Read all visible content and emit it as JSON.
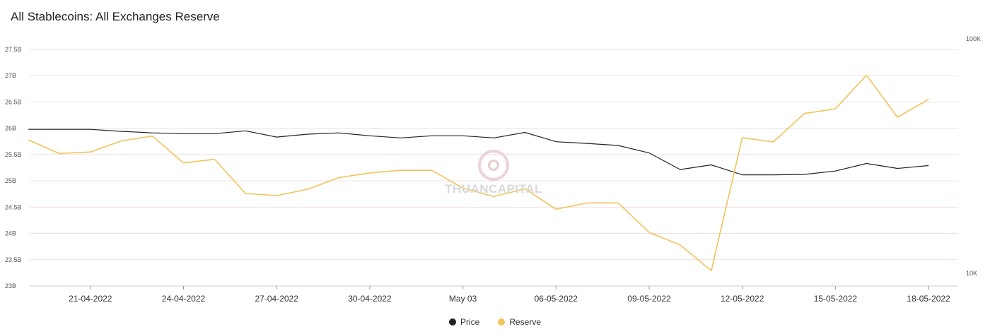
{
  "header": {
    "title": "All Stablecoins: All Exchanges Reserve"
  },
  "watermark": {
    "text": "THUANCAPITAL"
  },
  "legend": {
    "items": [
      {
        "label": "Price",
        "color": "#222222"
      },
      {
        "label": "Reserve",
        "color": "#f0c45a"
      }
    ]
  },
  "chart_data": {
    "type": "line",
    "title": "All Stablecoins: All Exchanges Reserve",
    "xlabel": "",
    "ylabel": "",
    "x_ticks": [
      "21-04-2022",
      "24-04-2022",
      "27-04-2022",
      "30-04-2022",
      "May 03",
      "06-05-2022",
      "09-05-2022",
      "12-05-2022",
      "15-05-2022",
      "18-05-2022"
    ],
    "y_ticks": [
      "27.5B",
      "27B",
      "26.5B",
      "26B",
      "25.5B",
      "25B",
      "24.5B",
      "24B",
      "23.5B",
      "23B"
    ],
    "right_y_ticks": [
      "100K",
      "10K"
    ],
    "ylim": [
      23000000000,
      27500000000
    ],
    "right_ylim": [
      10000,
      100000
    ],
    "right_scale": "log",
    "x": [
      "19-04-2022",
      "20-04-2022",
      "21-04-2022",
      "22-04-2022",
      "23-04-2022",
      "24-04-2022",
      "25-04-2022",
      "26-04-2022",
      "27-04-2022",
      "28-04-2022",
      "29-04-2022",
      "30-04-2022",
      "01-05-2022",
      "02-05-2022",
      "03-05-2022",
      "04-05-2022",
      "05-05-2022",
      "06-05-2022",
      "07-05-2022",
      "08-05-2022",
      "09-05-2022",
      "10-05-2022",
      "11-05-2022",
      "12-05-2022",
      "13-05-2022",
      "14-05-2022",
      "15-05-2022",
      "16-05-2022",
      "17-05-2022",
      "18-05-2022"
    ],
    "series": [
      {
        "name": "Price",
        "color": "#222222",
        "axis": "right",
        "values": [
          41100,
          41100,
          41100,
          40300,
          39700,
          39400,
          39400,
          40500,
          38100,
          39200,
          39700,
          38600,
          37800,
          38600,
          38600,
          37800,
          39900,
          36400,
          35800,
          35100,
          32600,
          27700,
          29000,
          26300,
          26300,
          26400,
          27300,
          29400,
          28000,
          28800
        ]
      },
      {
        "name": "Reserve",
        "color": "#f0c45a",
        "axis": "left",
        "values": [
          25780000000,
          25520000000,
          25550000000,
          25760000000,
          25850000000,
          25340000000,
          25410000000,
          24760000000,
          24720000000,
          24840000000,
          25060000000,
          25150000000,
          25200000000,
          25200000000,
          24860000000,
          24700000000,
          24850000000,
          24460000000,
          24580000000,
          24580000000,
          24020000000,
          23780000000,
          23290000000,
          25820000000,
          25740000000,
          26280000000,
          26370000000,
          27010000000,
          26210000000,
          26550000000
        ]
      }
    ],
    "grid": true,
    "legend_position": "bottom"
  }
}
